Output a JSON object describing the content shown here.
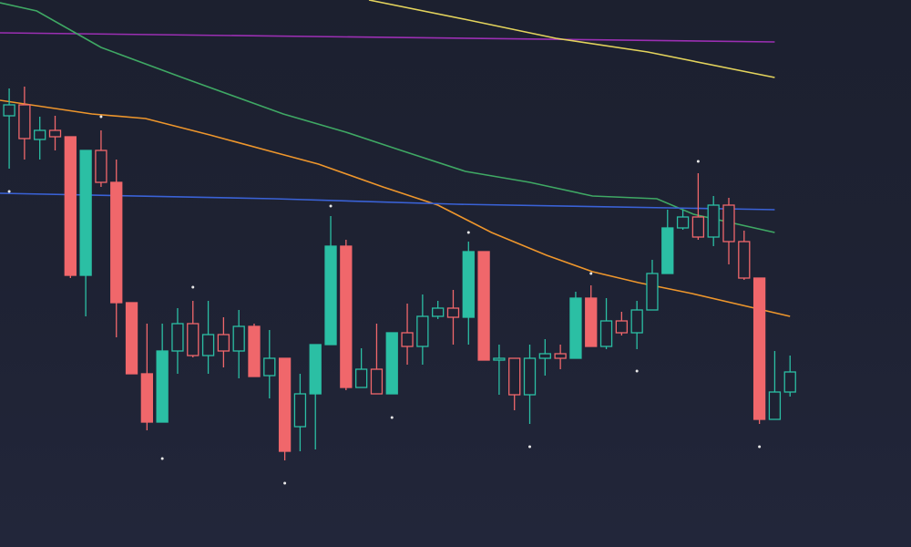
{
  "chart_data": {
    "type": "candlestick",
    "open": [
      473,
      485,
      447,
      457,
      450,
      298,
      435,
      400,
      268,
      190,
      137,
      215,
      245,
      210,
      233,
      215,
      242,
      188,
      207,
      132,
      168,
      222,
      330,
      175,
      195,
      168,
      235,
      220,
      253,
      262,
      252,
      324,
      205,
      207,
      167,
      207,
      212,
      207,
      273,
      220,
      248,
      235,
      260,
      300,
      350,
      362,
      340,
      375,
      335,
      295,
      140,
      170
    ],
    "high": [
      503,
      505,
      472,
      473,
      450,
      435,
      457,
      425,
      268,
      245,
      245,
      262,
      270,
      270,
      252,
      260,
      245,
      238,
      207,
      190,
      222,
      363,
      337,
      218,
      245,
      235,
      267,
      277,
      270,
      282,
      335,
      324,
      222,
      207,
      222,
      228,
      222,
      280,
      287,
      273,
      258,
      270,
      315,
      370,
      370,
      410,
      385,
      383,
      347,
      295,
      215,
      210
    ],
    "low": [
      415,
      425,
      425,
      435,
      295,
      253,
      395,
      230,
      190,
      128,
      137,
      190,
      208,
      190,
      197,
      185,
      187,
      163,
      95,
      105,
      107,
      222,
      172,
      175,
      168,
      168,
      200,
      200,
      250,
      222,
      222,
      205,
      167,
      150,
      135,
      188,
      195,
      207,
      220,
      217,
      232,
      217,
      260,
      300,
      348,
      337,
      330,
      310,
      293,
      135,
      140,
      165
    ],
    "close": [
      485,
      448,
      457,
      450,
      298,
      435,
      400,
      268,
      190,
      137,
      215,
      245,
      210,
      233,
      215,
      242,
      187,
      207,
      105,
      168,
      222,
      330,
      175,
      195,
      168,
      235,
      220,
      253,
      262,
      252,
      324,
      205,
      207,
      167,
      207,
      212,
      207,
      273,
      220,
      248,
      235,
      260,
      300,
      350,
      362,
      340,
      375,
      335,
      295,
      140,
      170,
      192
    ],
    "up_color": "#2bbfa4",
    "down_color": "#f0676b",
    "markers": {
      "color": "#e8e8e8",
      "values": [
        390,
        null,
        null,
        null,
        null,
        null,
        472,
        null,
        null,
        null,
        97,
        null,
        285,
        null,
        null,
        null,
        null,
        null,
        70,
        null,
        null,
        374,
        null,
        null,
        null,
        142,
        null,
        null,
        null,
        null,
        345,
        null,
        null,
        null,
        110,
        null,
        null,
        null,
        300,
        null,
        null,
        193,
        null,
        null,
        null,
        423,
        null,
        null,
        null,
        110,
        null,
        null
      ]
    },
    "series": [
      {
        "color": "#9b2fb3",
        "x": [
          -0.6,
          50
        ],
        "values": [
          564,
          554
        ]
      },
      {
        "color": "#e3d35c",
        "x": [
          23.5,
          30,
          35.7,
          41.7,
          50
        ],
        "values": [
          600,
          578,
          558,
          543,
          515
        ]
      },
      {
        "color": "#3fa864",
        "x": [
          -0.6,
          1.8,
          6,
          11.3,
          17.9,
          22,
          25.6,
          29.8,
          34,
          38.1,
          42.3,
          44.7,
          50
        ],
        "values": [
          597,
          588,
          548,
          515,
          475,
          455,
          435,
          412,
          400,
          385,
          382,
          365,
          345
        ]
      },
      {
        "color": "#ee962c",
        "x": [
          -0.6,
          5.4,
          8.9,
          13.1,
          17.3,
          20.2,
          24.4,
          28,
          31.5,
          35.1,
          38.1,
          41.1,
          44.6,
          51
        ],
        "values": [
          490,
          475,
          470,
          452,
          433,
          420,
          395,
          375,
          345,
          320,
          302,
          290,
          278,
          253
        ]
      },
      {
        "color": "#3a62d6",
        "x": [
          -0.6,
          17.3,
          29.2,
          50
        ],
        "values": [
          388,
          382,
          376,
          370
        ]
      }
    ],
    "xlim": [
      -0.6,
      58.9
    ],
    "ylim": [
      0,
      600
    ]
  }
}
